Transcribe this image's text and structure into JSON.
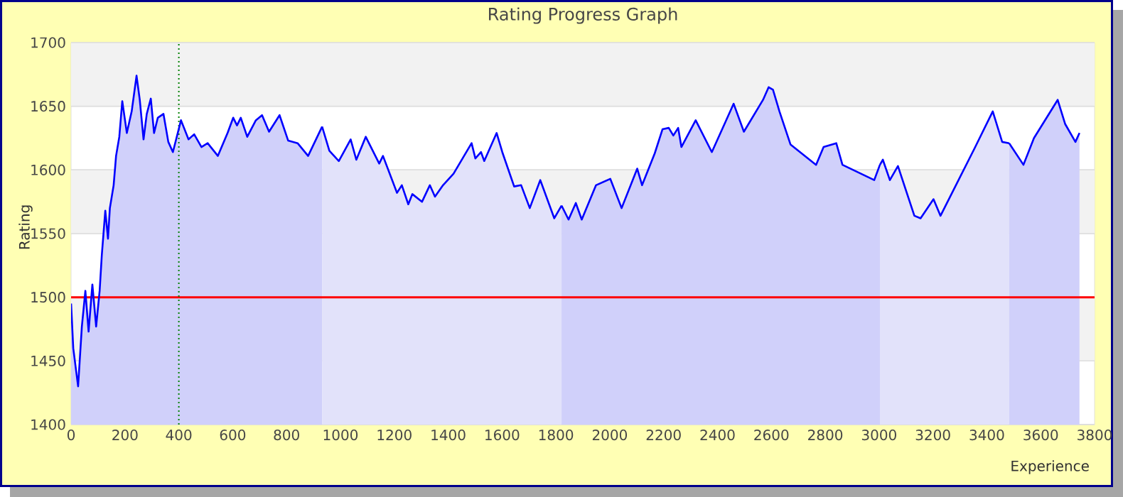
{
  "chart_data": {
    "type": "area",
    "title": "Rating Progress Graph",
    "xlabel": "Experience",
    "ylabel": "Rating",
    "xlim": [
      0,
      3800
    ],
    "ylim": [
      1400,
      1700
    ],
    "xticks": [
      0,
      200,
      400,
      600,
      800,
      1000,
      1200,
      1400,
      1600,
      1800,
      2000,
      2200,
      2400,
      2600,
      2800,
      3000,
      3200,
      3400,
      3600,
      3800
    ],
    "yticks": [
      1400,
      1450,
      1500,
      1550,
      1600,
      1650,
      1700
    ],
    "grid": "y",
    "series": [
      {
        "color": "#d0d0fa",
        "x": [
          0,
          8,
          26,
          40,
          53,
          65,
          79,
          93,
          106,
          114,
          127,
          137,
          144,
          158,
          167,
          179,
          190,
          207,
          225,
          243,
          255,
          269,
          281,
          296,
          308,
          322,
          343,
          361,
          378,
          408,
          436,
          457,
          484,
          507,
          545,
          581,
          602,
          616,
          630,
          654,
          686,
          709,
          735,
          774,
          806,
          841,
          880,
          932
        ],
        "values": [
          1495,
          1460,
          1430,
          1477,
          1505,
          1473,
          1510,
          1477,
          1505,
          1533,
          1568,
          1546,
          1570,
          1588,
          1611,
          1626,
          1654,
          1629,
          1646,
          1674,
          1655,
          1624,
          1644,
          1656,
          1629,
          1641,
          1644,
          1622,
          1614,
          1639,
          1624,
          1628,
          1618,
          1621,
          1611,
          1629,
          1641,
          1635,
          1641,
          1626,
          1639,
          1643,
          1630,
          1643,
          1623,
          1621,
          1611,
          1634
        ]
      },
      {
        "color": "#e2e2fa",
        "x": [
          932,
          959,
          994,
          1038,
          1059,
          1094,
          1144,
          1158,
          1210,
          1228,
          1252,
          1267,
          1303,
          1332,
          1351,
          1381,
          1420,
          1487,
          1501,
          1522,
          1534,
          1580,
          1601,
          1645,
          1671,
          1703,
          1742,
          1794,
          1821
        ],
        "values": [
          1634,
          1615,
          1607,
          1624,
          1608,
          1626,
          1605,
          1611,
          1582,
          1588,
          1573,
          1581,
          1575,
          1588,
          1579,
          1588,
          1597,
          1621,
          1609,
          1614,
          1607,
          1629,
          1614,
          1587,
          1588,
          1570,
          1592,
          1562,
          1572
        ]
      },
      {
        "color": "#d0d0fa",
        "x": [
          1821,
          1847,
          1874,
          1896,
          1949,
          2002,
          2044,
          2102,
          2120,
          2167,
          2196,
          2219,
          2236,
          2254,
          2266,
          2319,
          2379,
          2460,
          2498,
          2569,
          2590,
          2606,
          2630,
          2671,
          2766,
          2794,
          2841,
          2864,
          2982,
          3003
        ],
        "values": [
          1572,
          1561,
          1574,
          1561,
          1588,
          1593,
          1570,
          1601,
          1588,
          1613,
          1632,
          1633,
          1627,
          1633,
          1618,
          1639,
          1614,
          1652,
          1630,
          1655,
          1665,
          1663,
          1646,
          1620,
          1604,
          1618,
          1621,
          1604,
          1592,
          1604
        ]
      },
      {
        "color": "#e2e2fa",
        "x": [
          3003,
          3014,
          3040,
          3070,
          3131,
          3154,
          3202,
          3228,
          3357,
          3422,
          3457,
          3483
        ],
        "values": [
          1604,
          1608,
          1592,
          1603,
          1564,
          1562,
          1577,
          1564,
          1618,
          1646,
          1622,
          1621
        ]
      },
      {
        "color": "#d0d0fa",
        "x": [
          3483,
          3536,
          3575,
          3663,
          3691,
          3729,
          3744
        ],
        "values": [
          1621,
          1604,
          1625,
          1655,
          1636,
          1622,
          1629
        ]
      }
    ],
    "ref_lines": [
      {
        "axis": "y",
        "value": 1500,
        "color": "#ff0000",
        "line_style": "solid"
      },
      {
        "axis": "x",
        "value": 400,
        "color": "#008000",
        "line_style": "dotted"
      }
    ]
  }
}
